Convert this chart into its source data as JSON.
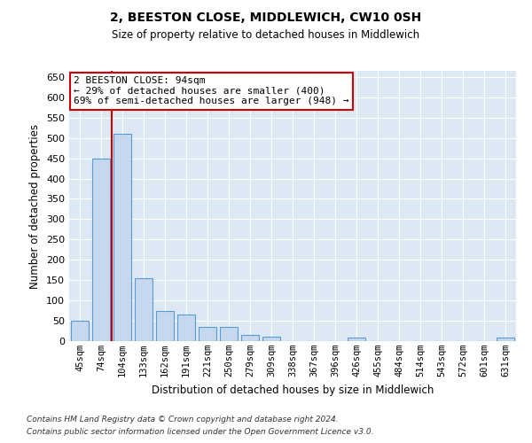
{
  "title1": "2, BEESTON CLOSE, MIDDLEWICH, CW10 0SH",
  "title2": "Size of property relative to detached houses in Middlewich",
  "xlabel": "Distribution of detached houses by size in Middlewich",
  "ylabel": "Number of detached properties",
  "categories": [
    "45sqm",
    "74sqm",
    "104sqm",
    "133sqm",
    "162sqm",
    "191sqm",
    "221sqm",
    "250sqm",
    "279sqm",
    "309sqm",
    "338sqm",
    "367sqm",
    "396sqm",
    "426sqm",
    "455sqm",
    "484sqm",
    "514sqm",
    "543sqm",
    "572sqm",
    "601sqm",
    "631sqm"
  ],
  "values": [
    50,
    450,
    510,
    155,
    75,
    65,
    35,
    35,
    15,
    10,
    0,
    0,
    0,
    8,
    0,
    0,
    0,
    0,
    0,
    0,
    8
  ],
  "bar_color": "#c5d8ed",
  "bar_edge_color": "#5b9bd5",
  "vline_color": "#cc0000",
  "annotation_line1": "2 BEESTON CLOSE: 94sqm",
  "annotation_line2": "← 29% of detached houses are smaller (400)",
  "annotation_line3": "69% of semi-detached houses are larger (948) →",
  "annotation_box_facecolor": "#ffffff",
  "annotation_box_edgecolor": "#cc0000",
  "ylim": [
    0,
    665
  ],
  "yticks": [
    0,
    50,
    100,
    150,
    200,
    250,
    300,
    350,
    400,
    450,
    500,
    550,
    600,
    650
  ],
  "plot_bg_color": "#dce9f5",
  "footer1": "Contains HM Land Registry data © Crown copyright and database right 2024.",
  "footer2": "Contains public sector information licensed under the Open Government Licence v3.0."
}
